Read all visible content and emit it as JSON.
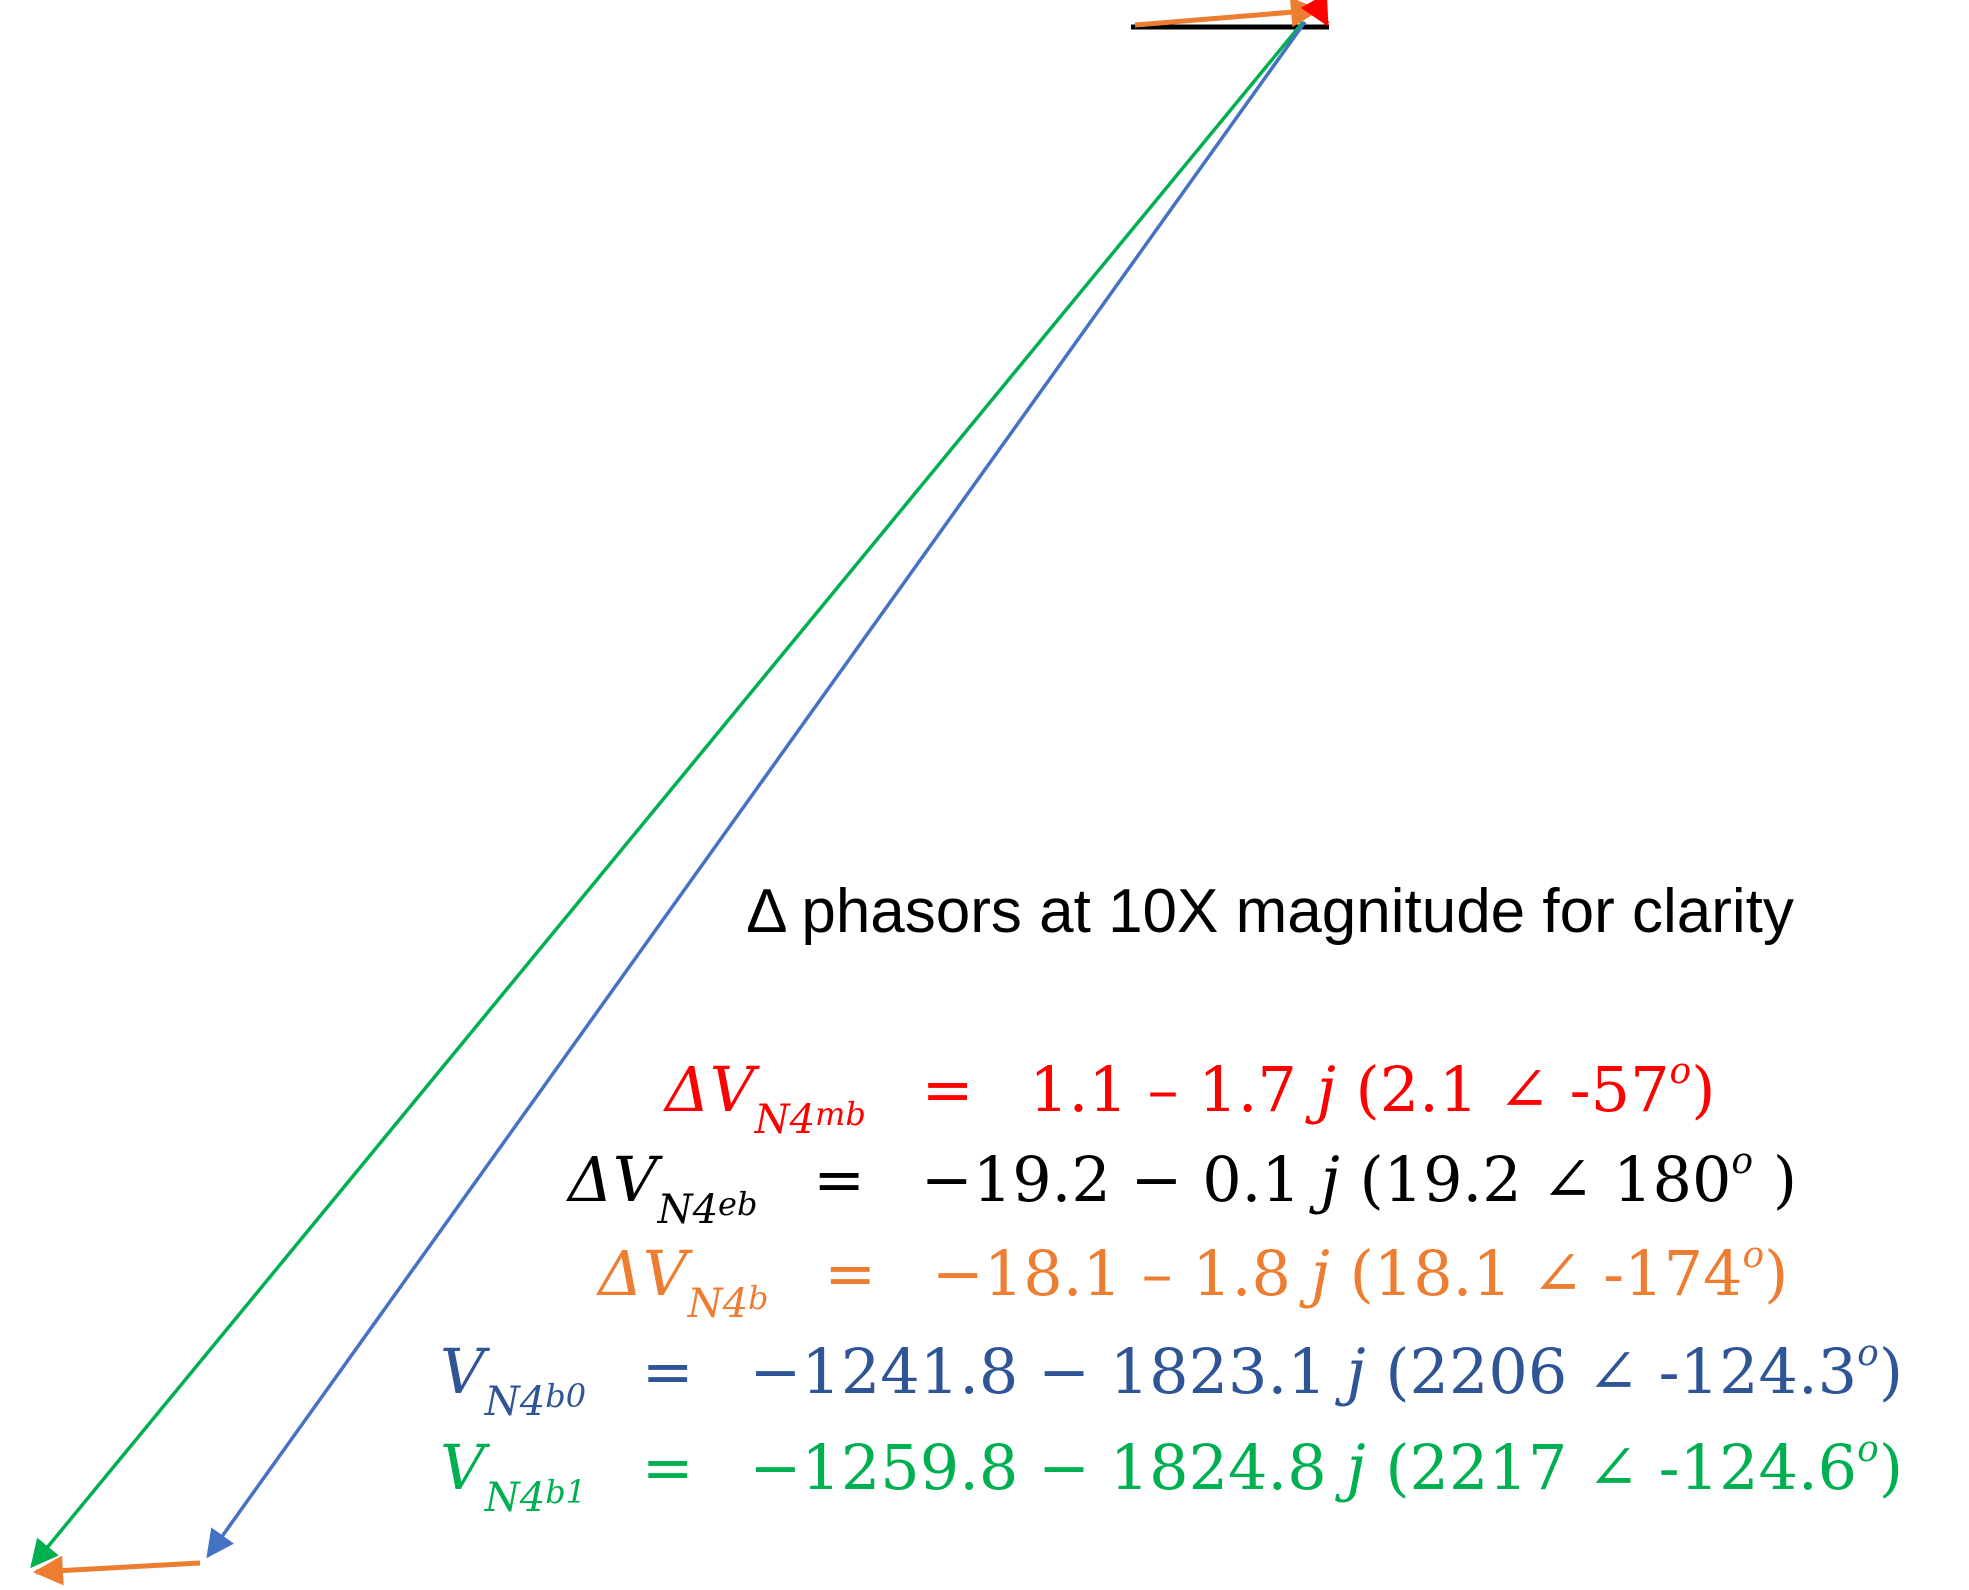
{
  "caption": "Δ phasors at 10X magnitude for clarity",
  "colors": {
    "red": "#ff0000",
    "black": "#000000",
    "orange": "#ed7d31",
    "blue": "#2f5597",
    "blue_vector": "#4472c4",
    "green": "#00b050"
  },
  "equations": [
    {
      "symbol": "ΔV",
      "sub": "N4",
      "subsub": "mb",
      "eq": "=",
      "value": "1.1 – 1.7",
      "j": "j",
      "polar_open": "(2.1 ∠ -57",
      "deg": "o",
      "polar_close": ")"
    },
    {
      "symbol": "ΔV",
      "sub": "N4",
      "subsub": "eb",
      "eq": "=",
      "value": "−19.2 − 0.1",
      "j": "j",
      "polar_open": "(19.2 ∠ 180",
      "deg": "o",
      "polar_close": " )"
    },
    {
      "symbol": "ΔV",
      "sub": "N4",
      "subsub": "b",
      "eq": "=",
      "value": "−18.1 – 1.8",
      "j": "j",
      "polar_open": "(18.1 ∠ -174",
      "deg": "o",
      "polar_close": ")"
    },
    {
      "symbol": "V",
      "sub": "N4",
      "subsub": "b0",
      "eq": "=",
      "value": "−1241.8 − 1823.1",
      "j": "j",
      "polar_open": "(2206 ∠ -124.3",
      "deg": "o",
      "polar_close": ")"
    },
    {
      "symbol": "V",
      "sub": "N4",
      "subsub": "b1",
      "eq": "=",
      "value": "−1259.8 − 1824.8",
      "j": "j",
      "polar_open": "(2217 ∠ -124.6",
      "deg": "o",
      "polar_close": ")"
    }
  ]
}
